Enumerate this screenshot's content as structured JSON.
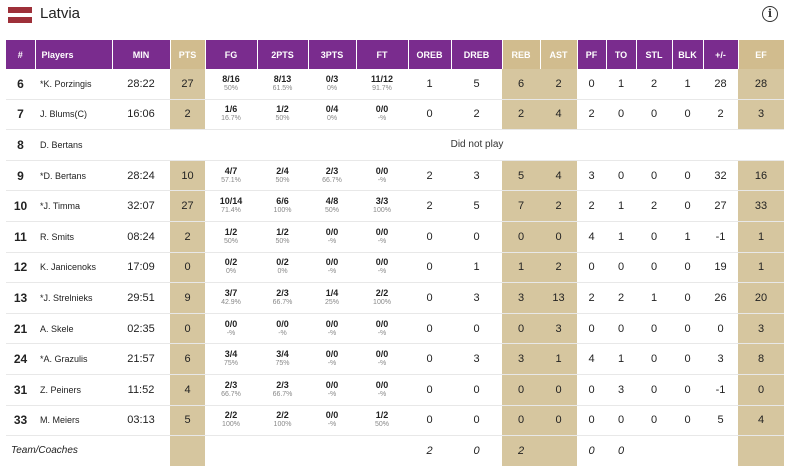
{
  "team": {
    "name": "Latvia",
    "flag_colors": [
      "#9e3039",
      "#ffffff",
      "#9e3039"
    ]
  },
  "colors": {
    "header_purple": "#7a2c8e",
    "highlight": "#d6c69f"
  },
  "columns": [
    {
      "key": "num",
      "label": "#",
      "hl": false
    },
    {
      "key": "player",
      "label": "Players",
      "hl": false
    },
    {
      "key": "min",
      "label": "MIN",
      "hl": false
    },
    {
      "key": "pts",
      "label": "PTS",
      "hl": true
    },
    {
      "key": "fg",
      "label": "FG",
      "hl": false
    },
    {
      "key": "2pts",
      "label": "2PTS",
      "hl": false
    },
    {
      "key": "3pts",
      "label": "3PTS",
      "hl": false
    },
    {
      "key": "ft",
      "label": "FT",
      "hl": false
    },
    {
      "key": "oreb",
      "label": "OREB",
      "hl": false
    },
    {
      "key": "dreb",
      "label": "DREB",
      "hl": false
    },
    {
      "key": "reb",
      "label": "REB",
      "hl": true
    },
    {
      "key": "ast",
      "label": "AST",
      "hl": true
    },
    {
      "key": "pf",
      "label": "PF",
      "hl": false
    },
    {
      "key": "to",
      "label": "TO",
      "hl": false
    },
    {
      "key": "stl",
      "label": "STL",
      "hl": false
    },
    {
      "key": "blk",
      "label": "BLK",
      "hl": false
    },
    {
      "key": "pm",
      "label": "+/-",
      "hl": false
    },
    {
      "key": "ef",
      "label": "EF",
      "hl": true
    }
  ],
  "players": [
    {
      "num": "6",
      "name": "*K. Porzingis",
      "min": "28:22",
      "pts": "27",
      "fg": [
        "8/16",
        "50%"
      ],
      "p2": [
        "8/13",
        "61.5%"
      ],
      "p3": [
        "0/3",
        "0%"
      ],
      "ft": [
        "11/12",
        "91.7%"
      ],
      "oreb": "1",
      "dreb": "5",
      "reb": "6",
      "ast": "2",
      "pf": "0",
      "to": "1",
      "stl": "2",
      "blk": "1",
      "pm": "28",
      "ef": "28"
    },
    {
      "num": "7",
      "name": "J. Blums(C)",
      "min": "16:06",
      "pts": "2",
      "fg": [
        "1/6",
        "16.7%"
      ],
      "p2": [
        "1/2",
        "50%"
      ],
      "p3": [
        "0/4",
        "0%"
      ],
      "ft": [
        "0/0",
        "-%"
      ],
      "oreb": "0",
      "dreb": "2",
      "reb": "2",
      "ast": "4",
      "pf": "2",
      "to": "0",
      "stl": "0",
      "blk": "0",
      "pm": "2",
      "ef": "3"
    },
    {
      "num": "8",
      "name": "D. Bertans",
      "dnp": "Did not play"
    },
    {
      "num": "9",
      "name": "*D. Bertans",
      "min": "28:24",
      "pts": "10",
      "fg": [
        "4/7",
        "57.1%"
      ],
      "p2": [
        "2/4",
        "50%"
      ],
      "p3": [
        "2/3",
        "66.7%"
      ],
      "ft": [
        "0/0",
        "-%"
      ],
      "oreb": "2",
      "dreb": "3",
      "reb": "5",
      "ast": "4",
      "pf": "3",
      "to": "0",
      "stl": "0",
      "blk": "0",
      "pm": "32",
      "ef": "16"
    },
    {
      "num": "10",
      "name": "*J. Timma",
      "min": "32:07",
      "pts": "27",
      "fg": [
        "10/14",
        "71.4%"
      ],
      "p2": [
        "6/6",
        "100%"
      ],
      "p3": [
        "4/8",
        "50%"
      ],
      "ft": [
        "3/3",
        "100%"
      ],
      "oreb": "2",
      "dreb": "5",
      "reb": "7",
      "ast": "2",
      "pf": "2",
      "to": "1",
      "stl": "2",
      "blk": "0",
      "pm": "27",
      "ef": "33"
    },
    {
      "num": "11",
      "name": "R. Smits",
      "min": "08:24",
      "pts": "2",
      "fg": [
        "1/2",
        "50%"
      ],
      "p2": [
        "1/2",
        "50%"
      ],
      "p3": [
        "0/0",
        "-%"
      ],
      "ft": [
        "0/0",
        "-%"
      ],
      "oreb": "0",
      "dreb": "0",
      "reb": "0",
      "ast": "0",
      "pf": "4",
      "to": "1",
      "stl": "0",
      "blk": "1",
      "pm": "-1",
      "ef": "1"
    },
    {
      "num": "12",
      "name": "K. Janicenoks",
      "min": "17:09",
      "pts": "0",
      "fg": [
        "0/2",
        "0%"
      ],
      "p2": [
        "0/2",
        "0%"
      ],
      "p3": [
        "0/0",
        "-%"
      ],
      "ft": [
        "0/0",
        "-%"
      ],
      "oreb": "0",
      "dreb": "1",
      "reb": "1",
      "ast": "2",
      "pf": "0",
      "to": "0",
      "stl": "0",
      "blk": "0",
      "pm": "19",
      "ef": "1"
    },
    {
      "num": "13",
      "name": "*J. Strelnieks",
      "min": "29:51",
      "pts": "9",
      "fg": [
        "3/7",
        "42.9%"
      ],
      "p2": [
        "2/3",
        "66.7%"
      ],
      "p3": [
        "1/4",
        "25%"
      ],
      "ft": [
        "2/2",
        "100%"
      ],
      "oreb": "0",
      "dreb": "3",
      "reb": "3",
      "ast": "13",
      "pf": "2",
      "to": "2",
      "stl": "1",
      "blk": "0",
      "pm": "26",
      "ef": "20"
    },
    {
      "num": "21",
      "name": "A. Skele",
      "min": "02:35",
      "pts": "0",
      "fg": [
        "0/0",
        "-%"
      ],
      "p2": [
        "0/0",
        "-%"
      ],
      "p3": [
        "0/0",
        "-%"
      ],
      "ft": [
        "0/0",
        "-%"
      ],
      "oreb": "0",
      "dreb": "0",
      "reb": "0",
      "ast": "3",
      "pf": "0",
      "to": "0",
      "stl": "0",
      "blk": "0",
      "pm": "0",
      "ef": "3"
    },
    {
      "num": "24",
      "name": "*A. Grazulis",
      "min": "21:57",
      "pts": "6",
      "fg": [
        "3/4",
        "75%"
      ],
      "p2": [
        "3/4",
        "75%"
      ],
      "p3": [
        "0/0",
        "-%"
      ],
      "ft": [
        "0/0",
        "-%"
      ],
      "oreb": "0",
      "dreb": "3",
      "reb": "3",
      "ast": "1",
      "pf": "4",
      "to": "1",
      "stl": "0",
      "blk": "0",
      "pm": "3",
      "ef": "8"
    },
    {
      "num": "31",
      "name": "Z. Peiners",
      "min": "11:52",
      "pts": "4",
      "fg": [
        "2/3",
        "66.7%"
      ],
      "p2": [
        "2/3",
        "66.7%"
      ],
      "p3": [
        "0/0",
        "-%"
      ],
      "ft": [
        "0/0",
        "-%"
      ],
      "oreb": "0",
      "dreb": "0",
      "reb": "0",
      "ast": "0",
      "pf": "0",
      "to": "3",
      "stl": "0",
      "blk": "0",
      "pm": "-1",
      "ef": "0"
    },
    {
      "num": "33",
      "name": "M. Meiers",
      "min": "03:13",
      "pts": "5",
      "fg": [
        "2/2",
        "100%"
      ],
      "p2": [
        "2/2",
        "100%"
      ],
      "p3": [
        "0/0",
        "-%"
      ],
      "ft": [
        "1/2",
        "50%"
      ],
      "oreb": "0",
      "dreb": "0",
      "reb": "0",
      "ast": "0",
      "pf": "0",
      "to": "0",
      "stl": "0",
      "blk": "0",
      "pm": "5",
      "ef": "4"
    }
  ],
  "team_row": {
    "label": "Team/Coaches",
    "oreb": "2",
    "dreb": "0",
    "reb": "2",
    "pf": "0",
    "to": "0"
  }
}
